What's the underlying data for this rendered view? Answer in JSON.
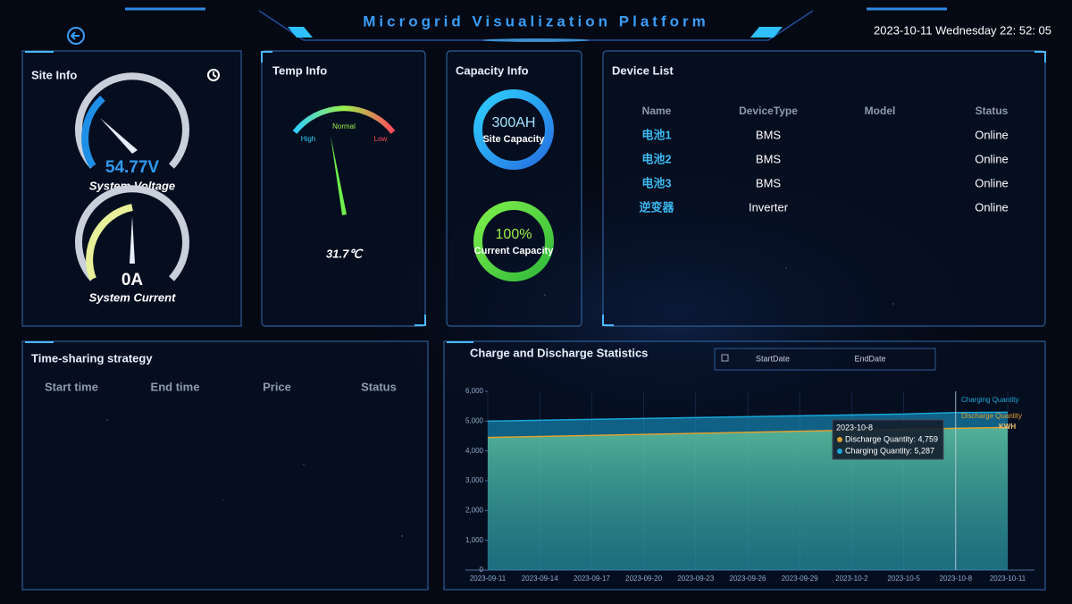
{
  "header": {
    "title": "Microgrid Visualization Platform",
    "datetime": "2023-10-11 Wednesday 22: 52: 05"
  },
  "site_info": {
    "title": "Site Info",
    "voltage": "54.77V",
    "voltage_label": "System Voltage",
    "current": "0A",
    "current_label": "System Current"
  },
  "temp_info": {
    "title": "Temp Info",
    "high": "High",
    "normal": "Normal",
    "low": "Low",
    "value": "31.7℃"
  },
  "capacity_info": {
    "title": "Capacity Info",
    "site_capacity": "300AH",
    "site_capacity_label": "Site Capacity",
    "current_capacity": "100%",
    "current_capacity_label": "Current Capacity"
  },
  "device_list": {
    "title": "Device List",
    "headers": [
      "Name",
      "DeviceType",
      "Model",
      "Status"
    ],
    "rows": [
      [
        "电池1",
        "BMS",
        "",
        "Online"
      ],
      [
        "电池2",
        "BMS",
        "",
        "Online"
      ],
      [
        "电池3",
        "BMS",
        "",
        "Online"
      ],
      [
        "逆变器",
        "Inverter",
        "",
        "Online"
      ]
    ]
  },
  "time_sharing": {
    "title": "Time-sharing strategy",
    "headers": [
      "Start time",
      "End time",
      "Price",
      "Status"
    ]
  },
  "date_picker": {
    "start": "StartDate",
    "end": "EndDate"
  },
  "chart_data": {
    "type": "area",
    "title": "Charge and Discharge Statistics",
    "unit": "KWH",
    "categories": [
      "2023-09-11",
      "2023-09-14",
      "2023-09-17",
      "2023-09-20",
      "2023-09-23",
      "2023-09-26",
      "2023-09-29",
      "2023-10-2",
      "2023-10-5",
      "2023-10-8",
      "2023-10-11"
    ],
    "series": [
      {
        "name": "Charging Quantity",
        "color": "#1aa6d8",
        "values": [
          5000,
          5030,
          5060,
          5090,
          5120,
          5150,
          5180,
          5210,
          5240,
          5287,
          5300
        ]
      },
      {
        "name": "Discharge Quantity",
        "color": "#e0a030",
        "values": [
          4450,
          4485,
          4520,
          4555,
          4590,
          4625,
          4660,
          4695,
          4725,
          4759,
          4790
        ]
      }
    ],
    "ylim": [
      0,
      6000
    ],
    "yticks": [
      0,
      {
        "value": 1000,
        "label": "1,000"
      },
      {
        "value": 2000,
        "label": "2,000"
      },
      {
        "value": 3000,
        "label": "3,000"
      },
      {
        "value": 4000,
        "label": "4,000"
      },
      {
        "value": 5000,
        "label": "5,000"
      },
      {
        "value": 6000,
        "label": "6,000"
      }
    ],
    "tooltip": {
      "items": [
        "Discharge Quantity: 4,759",
        "Charging Quantity: 5,287"
      ]
    }
  }
}
